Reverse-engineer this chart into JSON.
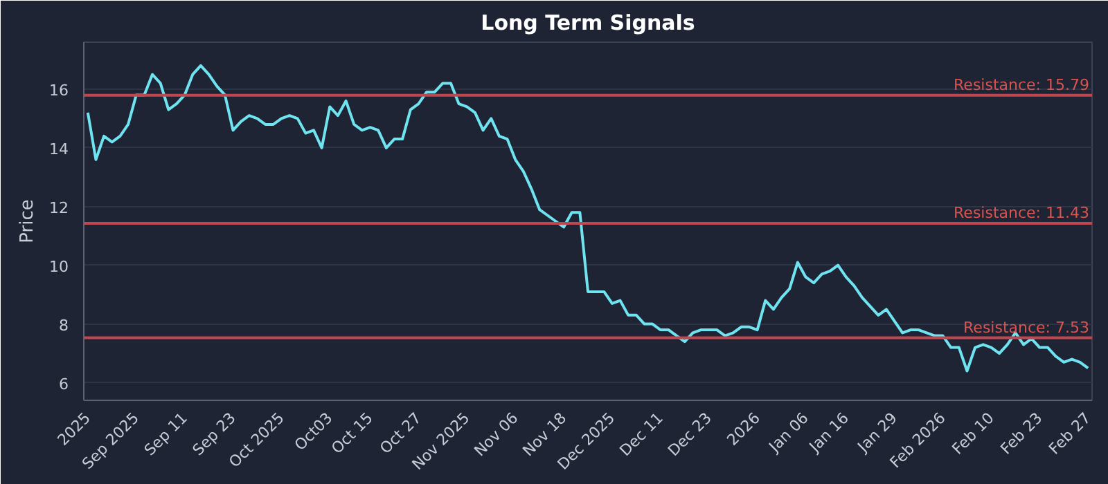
{
  "chart_data": {
    "type": "line",
    "title": "Long Term Signals",
    "ylabel": "Price",
    "categories": [
      "2025",
      null,
      null,
      null,
      null,
      null,
      "Sep 2025",
      null,
      null,
      null,
      null,
      null,
      "Sep 11",
      null,
      null,
      null,
      null,
      null,
      "Sep 23",
      null,
      null,
      null,
      null,
      null,
      "Oct 2025",
      null,
      null,
      null,
      null,
      null,
      "Oct03",
      null,
      null,
      null,
      null,
      "Oct 15",
      null,
      null,
      null,
      null,
      null,
      "Oct 27",
      null,
      null,
      null,
      null,
      null,
      "Nov 2025",
      null,
      null,
      null,
      null,
      null,
      "Nov 06",
      null,
      null,
      null,
      null,
      null,
      "Nov 18",
      null,
      null,
      null,
      null,
      null,
      "Dec 2025",
      null,
      null,
      null,
      null,
      null,
      "Dec 11",
      null,
      null,
      null,
      null,
      null,
      "Dec 23",
      null,
      null,
      null,
      null,
      null,
      "2026",
      null,
      null,
      null,
      null,
      null,
      "Jan 06",
      null,
      null,
      null,
      null,
      "Jan 16",
      null,
      null,
      null,
      null,
      null,
      "Jan 29",
      null,
      null,
      null,
      null,
      null,
      "Feb 2026",
      null,
      null,
      null,
      null,
      null,
      "Feb 10",
      null,
      null,
      null,
      null,
      null,
      "Feb 23",
      null,
      null,
      null,
      null,
      null,
      "Feb 27"
    ],
    "series": [
      {
        "color": "#6fe3f0",
        "values": [
          15.2,
          13.6,
          14.4,
          14.2,
          14.4,
          14.8,
          15.8,
          15.8,
          16.5,
          16.2,
          15.3,
          15.5,
          15.8,
          16.5,
          16.8,
          16.5,
          16.1,
          15.8,
          14.6,
          14.9,
          15.1,
          15.0,
          14.8,
          14.8,
          15.0,
          15.1,
          15.0,
          14.5,
          14.6,
          14.0,
          15.4,
          15.1,
          15.6,
          14.8,
          14.6,
          14.7,
          14.6,
          14.0,
          14.3,
          14.3,
          15.3,
          15.5,
          15.9,
          15.9,
          16.2,
          16.2,
          15.5,
          15.4,
          15.2,
          14.6,
          15.0,
          14.4,
          14.3,
          13.6,
          13.2,
          12.6,
          11.9,
          11.7,
          11.5,
          11.3,
          11.8,
          11.8,
          9.1,
          9.1,
          9.1,
          8.7,
          8.8,
          8.3,
          8.3,
          8.0,
          8.0,
          7.8,
          7.8,
          7.6,
          7.4,
          7.7,
          7.8,
          7.8,
          7.8,
          7.6,
          7.7,
          7.9,
          7.9,
          7.8,
          8.8,
          8.5,
          8.9,
          9.2,
          10.1,
          9.6,
          9.4,
          9.7,
          9.8,
          10.0,
          9.6,
          9.3,
          8.9,
          8.6,
          8.3,
          8.5,
          8.1,
          7.7,
          7.8,
          7.8,
          7.7,
          7.6,
          7.6,
          7.2,
          7.2,
          6.4,
          7.2,
          7.3,
          7.2,
          7.0,
          7.3,
          7.7,
          7.3,
          7.5,
          7.2,
          7.2,
          6.9,
          6.7,
          6.8,
          6.7,
          6.5
        ]
      }
    ],
    "ylim": [
      5.4,
      17.6
    ],
    "yticks": [
      6,
      8,
      10,
      12,
      14,
      16
    ],
    "grid": "y",
    "ref_lines": [
      {
        "axis": "y",
        "value": 15.79,
        "label": "Resistance: 15.79",
        "color": "#c0474f"
      },
      {
        "axis": "y",
        "value": 11.43,
        "label": "Resistance: 11.43",
        "color": "#c0474f"
      },
      {
        "axis": "y",
        "value": 7.53,
        "label": "Resistance: 7.53",
        "color": "#c0474f"
      }
    ]
  }
}
